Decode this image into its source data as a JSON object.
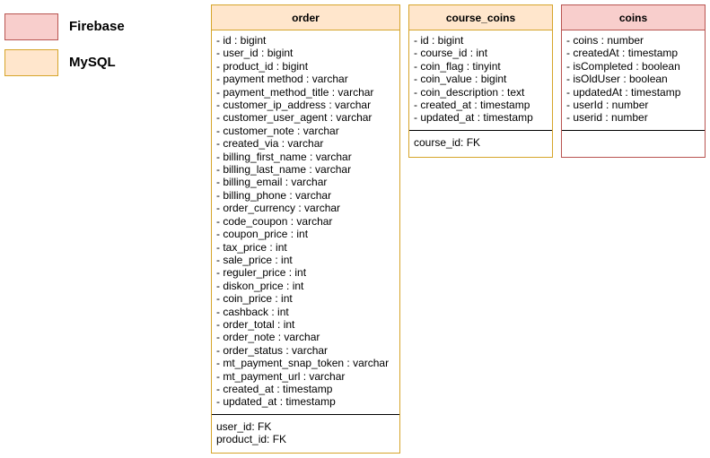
{
  "legend": [
    {
      "label": "Firebase"
    },
    {
      "label": "MySQL"
    }
  ],
  "tables": [
    {
      "name": "order",
      "fields": [
        "- id : bigint",
        "- user_id : bigint",
        "- product_id : bigint",
        "- payment method : varchar",
        "- payment_method_title : varchar",
        "- customer_ip_address : varchar",
        "- customer_user_agent : varchar",
        "- customer_note : varchar",
        "- created_via : varchar",
        "- billing_first_name : varchar",
        "- billing_last_name : varchar",
        "- billing_email : varchar",
        "- billing_phone : varchar",
        "- order_currency : varchar",
        "- code_coupon : varchar",
        "- coupon_price : int",
        "- tax_price : int",
        "- sale_price : int",
        "- reguler_price : int",
        "- diskon_price : int",
        "- coin_price : int",
        "- cashback : int",
        "- order_total : int",
        "- order_note : varchar",
        "- order_status : varchar",
        "- mt_payment_snap_token : varchar",
        "- mt_payment_url : varchar",
        "- created_at : timestamp",
        "- updated_at : timestamp"
      ],
      "keys": [
        "user_id: FK",
        "product_id: FK"
      ]
    },
    {
      "name": "course_coins",
      "fields": [
        "- id : bigint",
        "- course_id : int",
        "- coin_flag : tinyint",
        "- coin_value : bigint",
        "- coin_description : text",
        "- created_at : timestamp",
        "- updated_at : timestamp"
      ],
      "keys": [
        "course_id: FK"
      ]
    },
    {
      "name": "coins",
      "fields": [
        "- coins : number",
        "- createdAt : timestamp",
        "- isCompleted : boolean",
        "- isOldUser : boolean",
        "- updatedAt : timestamp",
        "- userId : number",
        "- userid : number"
      ],
      "keys": []
    }
  ]
}
